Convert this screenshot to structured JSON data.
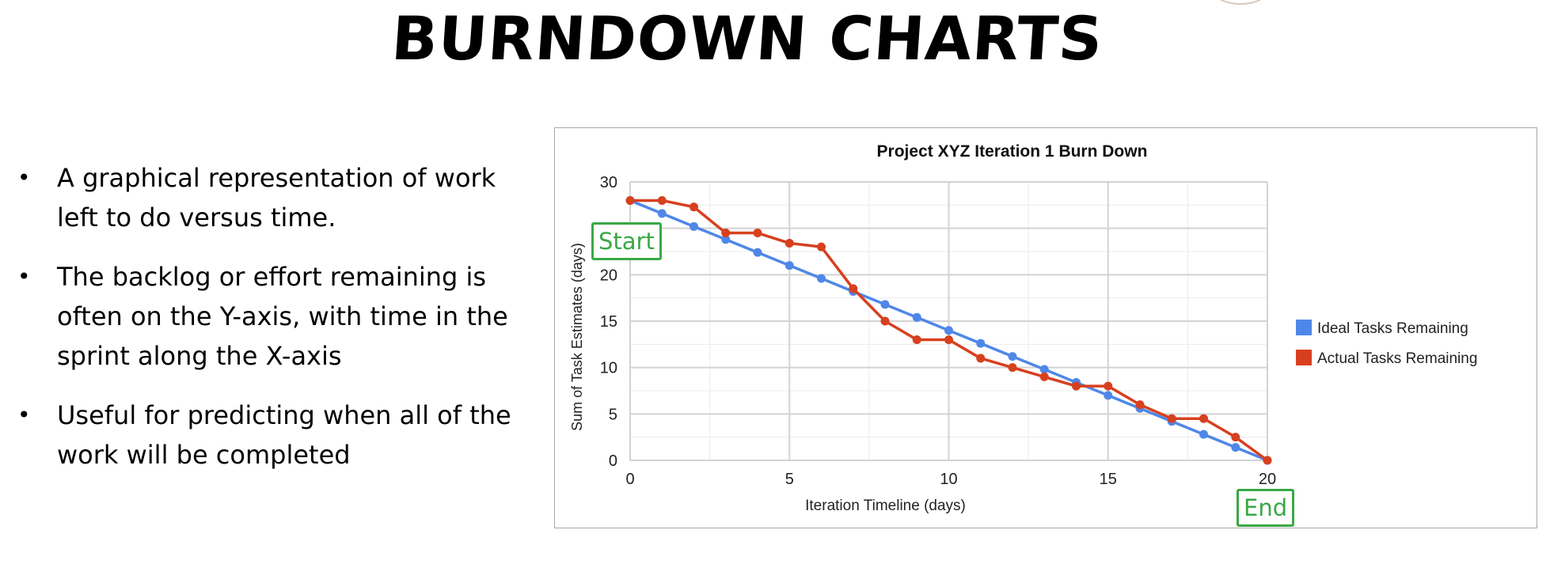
{
  "slide": {
    "title": "BURNDOWN CHARTS",
    "bullets": [
      "A graphical representation of work left to do versus time.",
      "The backlog or effort remaining is often on the Y-axis, with time in the sprint along the X-axis",
      "Useful for predicting when all of the work will be completed"
    ],
    "bullet_symbol": "•"
  },
  "callouts": {
    "start": "Start",
    "end": "End"
  },
  "chart_data": {
    "type": "line",
    "title": "Project XYZ Iteration 1 Burn Down",
    "xlabel": "Iteration Timeline (days)",
    "ylabel": "Sum of Task Estimates (days)",
    "xlim": [
      0,
      20
    ],
    "ylim": [
      0,
      30
    ],
    "x_ticks": [
      0,
      5,
      10,
      15,
      20
    ],
    "y_ticks": [
      0,
      5,
      10,
      15,
      20,
      25,
      30
    ],
    "grid": true,
    "legend_position": "right",
    "x": [
      0,
      1,
      2,
      3,
      4,
      5,
      6,
      7,
      8,
      9,
      10,
      11,
      12,
      13,
      14,
      15,
      16,
      17,
      18,
      19,
      20
    ],
    "series": [
      {
        "name": "Ideal Tasks Remaining",
        "color": "#4f87e8",
        "values": [
          28,
          26.6,
          25.2,
          23.8,
          22.4,
          21,
          19.6,
          18.2,
          16.8,
          15.4,
          14,
          12.6,
          11.2,
          9.8,
          8.4,
          7,
          5.6,
          4.2,
          2.8,
          1.4,
          0
        ]
      },
      {
        "name": "Actual Tasks Remaining",
        "color": "#d7401f",
        "values": [
          28,
          28,
          27.3,
          24.5,
          24.5,
          23.4,
          23,
          18.5,
          15,
          13,
          13,
          11,
          10,
          9,
          8,
          8,
          6,
          4.5,
          4.5,
          2.5,
          0
        ]
      }
    ]
  }
}
